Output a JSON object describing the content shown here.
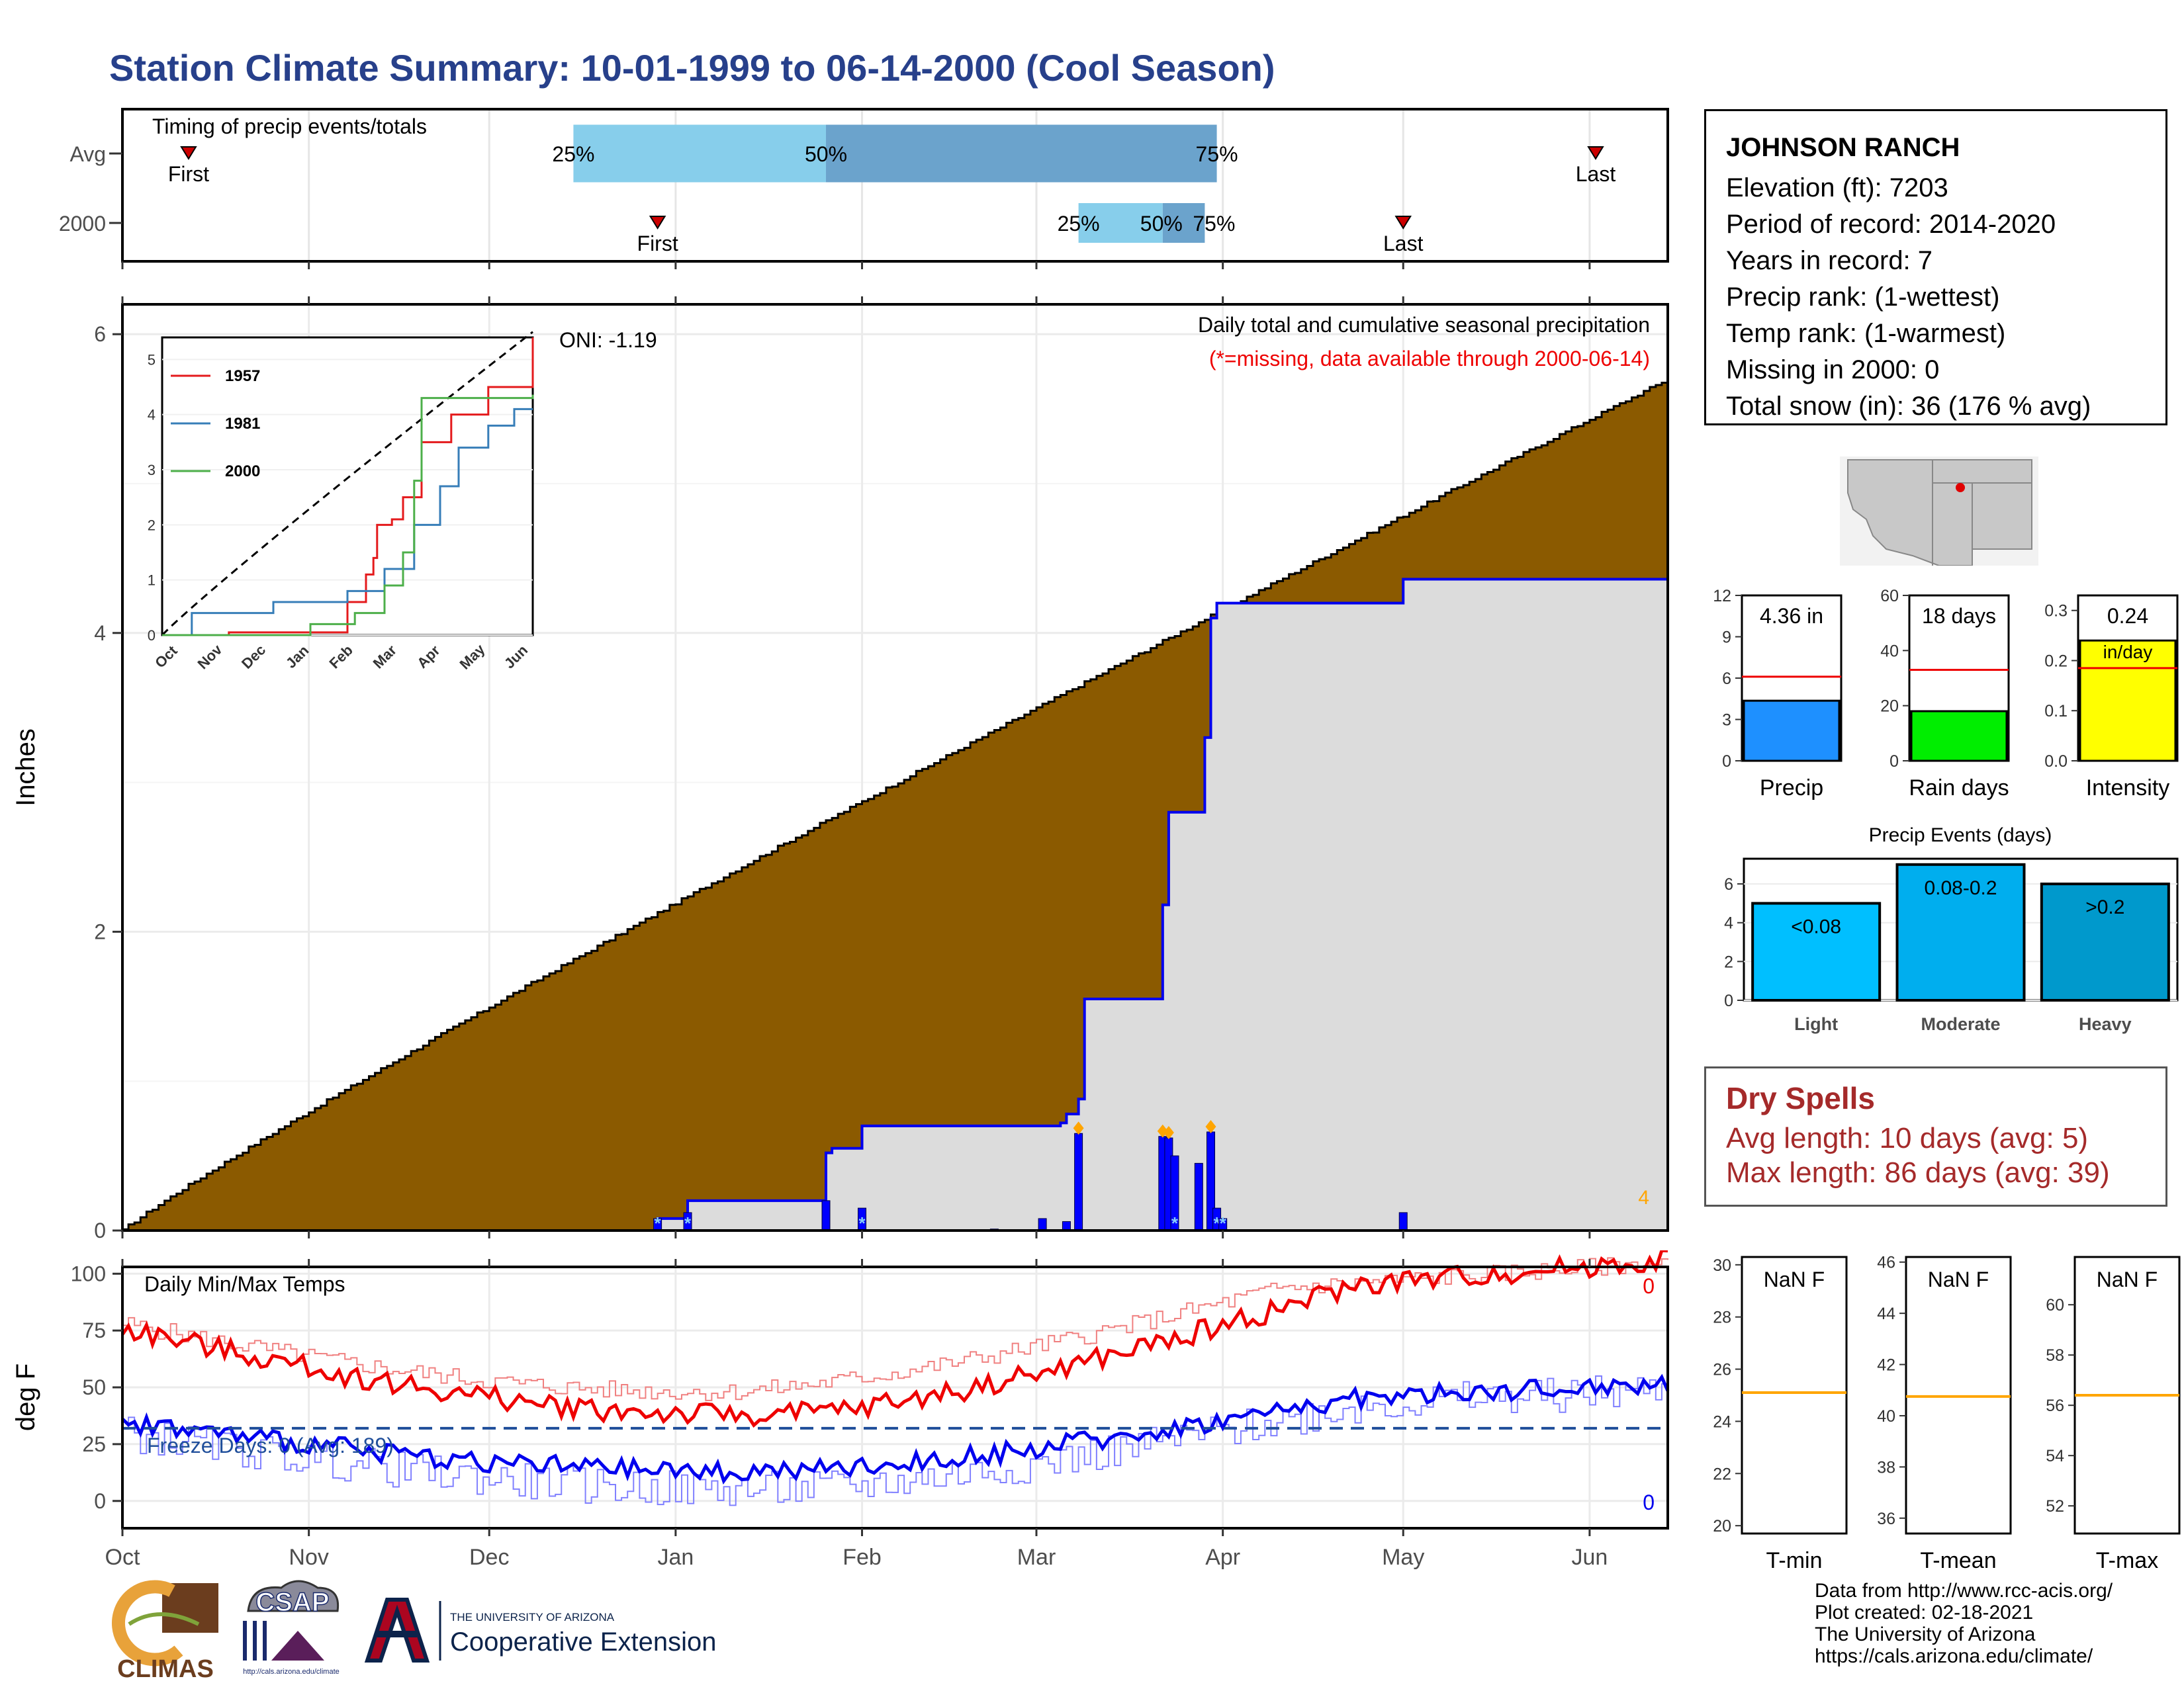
{
  "title": "Station Climate Summary: 10-01-1999 to 06-14-2000 (Cool Season)",
  "timing": {
    "label": "Timing of precip events/totals",
    "row_labels": [
      "Avg",
      "2000"
    ],
    "first_label": "First",
    "last_label": "Last",
    "avg": {
      "first": "1999-10-12",
      "p25": "1999-12-15",
      "p50": "2000-01-26",
      "p75": "2000-03-31",
      "last": "2000-06-02"
    },
    "y2000": {
      "first": "1999-12-29",
      "p25": "2000-03-08",
      "p50": "2000-03-22",
      "p75": "2000-03-29",
      "last": "2000-05-01"
    },
    "pct_labels": [
      "25%",
      "50%",
      "75%"
    ],
    "colors": {
      "light": "#87ceeb",
      "dark": "#6ba3cc",
      "marker": "#cc0000"
    }
  },
  "station": {
    "name": "JOHNSON RANCH",
    "lines": [
      "Elevation (ft): 7203",
      "Period of record: 2014-2020",
      "Years in record: 7",
      "Precip rank:  (1-wettest)",
      "Temp rank:  (1-warmest)",
      "Missing in 2000: 0",
      "Total snow (in): 36 (176 % avg)"
    ]
  },
  "precip_panel": {
    "ylabel": "Inches",
    "annotation_title": "Daily total and cumulative seasonal precipitation",
    "annotation_missing": "(*=missing, data available through 2000-06-14)",
    "oni_label": "ONI: -1.19",
    "count_label": "4",
    "y_ticks": [
      0,
      2,
      4,
      6
    ],
    "ylim": [
      0,
      6.2
    ],
    "colors": {
      "avg_fill": "#8b5a00",
      "obs_fill": "#dcdcdc",
      "obs_line": "#0000ee",
      "daily_bar": "#0000ff",
      "snow_marker": "#87cefa",
      "big_marker": "#ffa500"
    }
  },
  "x_axis": {
    "month_labels": [
      "Oct",
      "Nov",
      "Dec",
      "Jan",
      "Feb",
      "Mar",
      "Apr",
      "May",
      "Jun"
    ],
    "start": "1999-10-01",
    "end": "2000-06-14"
  },
  "inset": {
    "y_ticks": [
      "0",
      "1",
      "2",
      "3",
      "4",
      "5"
    ],
    "month_labels": [
      "Oct",
      "Nov",
      "Dec",
      "Jan",
      "Feb",
      "Mar",
      "Apr",
      "May",
      "Jun"
    ],
    "legend": [
      {
        "name": "1957",
        "color": "#e41a1c"
      },
      {
        "name": "1981",
        "color": "#377eb8"
      },
      {
        "name": "2000",
        "color": "#4daf4a"
      }
    ]
  },
  "summary_bars": [
    {
      "label": "Precip",
      "value_label": "4.36 in",
      "value": 4.36,
      "avg": 6.1,
      "max": 12,
      "ticks": [
        "0",
        "3",
        "6",
        "9",
        "12"
      ],
      "color": "#1e90ff"
    },
    {
      "label": "Rain days",
      "value_label": "18 days",
      "value": 18,
      "avg": 33,
      "max": 60,
      "ticks": [
        "0",
        "20",
        "40",
        "60"
      ],
      "color": "#00ee00"
    },
    {
      "label": "Intensity",
      "value_label": "0.24",
      "value_label2": "in/day",
      "value": 0.24,
      "avg": 0.185,
      "max": 0.33,
      "ticks": [
        "0.0",
        "0.1",
        "0.2",
        "0.3"
      ],
      "color": "#ffff00"
    }
  ],
  "precip_events": {
    "title": "Precip Events (days)",
    "categories": [
      "Light",
      "Moderate",
      "Heavy"
    ],
    "bin_labels": [
      "<0.08",
      "0.08-0.2",
      ">0.2"
    ],
    "values": [
      5,
      7,
      6
    ],
    "ticks": [
      "0",
      "2",
      "4",
      "6"
    ],
    "colors": [
      "#00bfff",
      "#00aeee",
      "#0099cc"
    ]
  },
  "dry_spells": {
    "title": "Dry Spells",
    "avg_line": "Avg length: 10 days (avg: 5)",
    "max_line": "Max length: 86 days (avg: 39)"
  },
  "temp_panel": {
    "ylabel": "deg F",
    "label": "Daily Min/Max Temps",
    "freeze_label": "Freeze Days: 0 (Avg: 189)",
    "max_count": "0",
    "min_count": "0",
    "y_ticks": [
      0,
      25,
      50,
      75,
      100
    ],
    "ylim": [
      -12,
      103
    ],
    "freeze_line": 32,
    "colors": {
      "max": "#ee0000",
      "min": "#0000ee",
      "avg_max": "#f08080",
      "avg_min": "#8080ff",
      "freeze": "#1f4e9a"
    }
  },
  "temp_bars": [
    {
      "label": "T-min",
      "value_label": "NaN F",
      "avg": 25.1,
      "ticks": [
        "20",
        "22",
        "24",
        "26",
        "28",
        "30"
      ],
      "ylim": [
        19.7,
        30.3
      ]
    },
    {
      "label": "T-mean",
      "value_label": "NaN F",
      "avg": 40.75,
      "ticks": [
        "36",
        "38",
        "40",
        "42",
        "44",
        "46"
      ],
      "ylim": [
        35.4,
        46.2
      ]
    },
    {
      "label": "T-max",
      "value_label": "NaN F",
      "avg": 56.4,
      "ticks": [
        "52",
        "54",
        "56",
        "58",
        "60"
      ],
      "ylim": [
        50.9,
        61.9
      ]
    }
  ],
  "credits": [
    "Data from http://www.rcc-acis.org/",
    "Plot created: 02-18-2021",
    "The University of Arizona",
    "https://cals.arizona.edu/climate/"
  ],
  "logos": {
    "climas": "CLIMAS",
    "csap": "CSAP",
    "csap_url": "http://cals.arizona.edu/climate",
    "ua_small": "THE UNIVERSITY OF ARIZONA",
    "ua_big": "Cooperative Extension"
  }
}
